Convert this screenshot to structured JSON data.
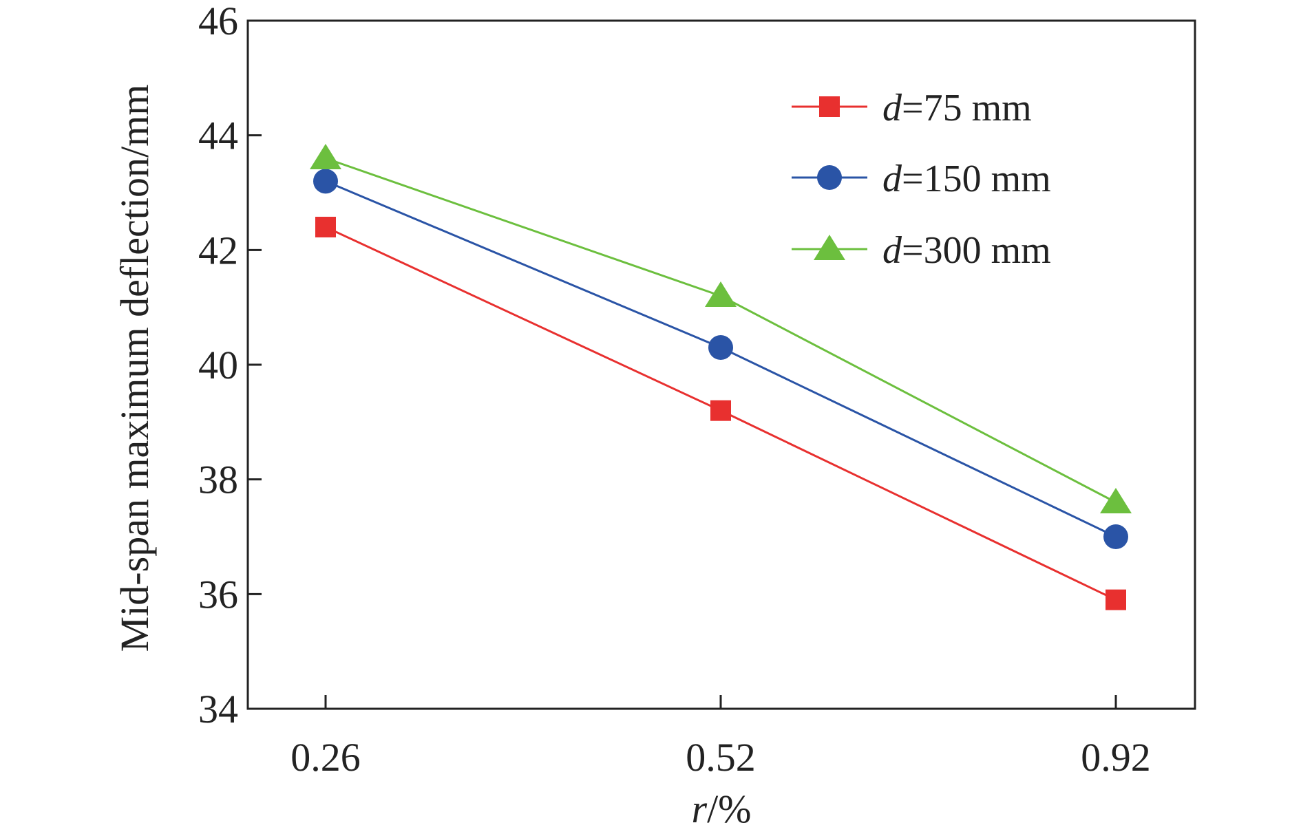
{
  "chart_data": {
    "type": "line",
    "xlabel": {
      "var": "r",
      "unit": "/%"
    },
    "ylabel": "Mid-span maximum deflection/mm",
    "categories": [
      "0.26",
      "0.52",
      "0.92"
    ],
    "ylim": [
      34,
      46
    ],
    "yticks": [
      34,
      36,
      38,
      40,
      42,
      44,
      46
    ],
    "grid": false,
    "legend_position": "top-right",
    "series": [
      {
        "name": "=75 mm",
        "prefix": "d",
        "color": "#e8302f",
        "marker": "square",
        "values": [
          42.4,
          39.2,
          35.9
        ]
      },
      {
        "name": "=150 mm",
        "prefix": "d",
        "color": "#2a54a6",
        "marker": "circle",
        "values": [
          43.2,
          40.3,
          37.0
        ]
      },
      {
        "name": "=300 mm",
        "prefix": "d",
        "color": "#6cbf3e",
        "marker": "triangle",
        "values": [
          43.6,
          41.2,
          37.6
        ]
      }
    ]
  }
}
